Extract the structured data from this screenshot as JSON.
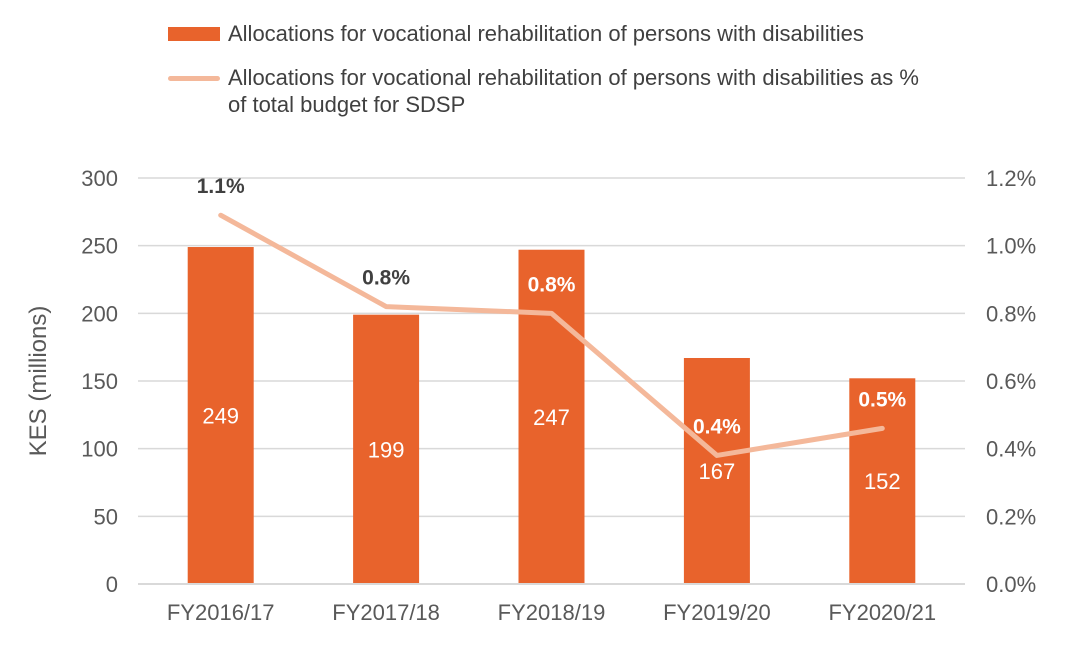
{
  "colors": {
    "bar": "#E8632C",
    "line": "#F4B89A",
    "grid": "#D9D9D9",
    "text": "#595959",
    "label_dark": "#404040",
    "label_light": "#FFFFFF"
  },
  "legend": {
    "bar_label": "Allocations for vocational rehabilitation of persons with disabilities",
    "line_label_1": "Allocations for vocational rehabilitation of persons with disabilities as %",
    "line_label_2": "of total budget for SDSP"
  },
  "chart_data": {
    "type": "bar",
    "categories": [
      "FY2016/17",
      "FY2017/18",
      "FY2018/19",
      "FY2019/20",
      "FY2020/21"
    ],
    "series": [
      {
        "name": "Allocations for vocational rehabilitation of persons with disabilities",
        "type": "bar",
        "axis": "left",
        "values": [
          249,
          199,
          247,
          167,
          152
        ],
        "labels": [
          "249",
          "199",
          "247",
          "167",
          "152"
        ]
      },
      {
        "name": "Allocations for vocational rehabilitation of persons with disabilities as % of total budget for SDSP",
        "type": "line",
        "axis": "right",
        "values": [
          1.09,
          0.82,
          0.8,
          0.38,
          0.46
        ],
        "labels": [
          "1.1%",
          "0.8%",
          "0.8%",
          "0.4%",
          "0.5%"
        ]
      }
    ],
    "ylabel": "KES (millions)",
    "ylim": [
      0,
      300
    ],
    "yticks": [
      "0",
      "50",
      "100",
      "150",
      "200",
      "250",
      "300"
    ],
    "y2lim": [
      0,
      1.2
    ],
    "y2ticks": [
      "0.0%",
      "0.2%",
      "0.4%",
      "0.6%",
      "0.8%",
      "1.0%",
      "1.2%"
    ],
    "grid": true,
    "legend_position": "top"
  }
}
